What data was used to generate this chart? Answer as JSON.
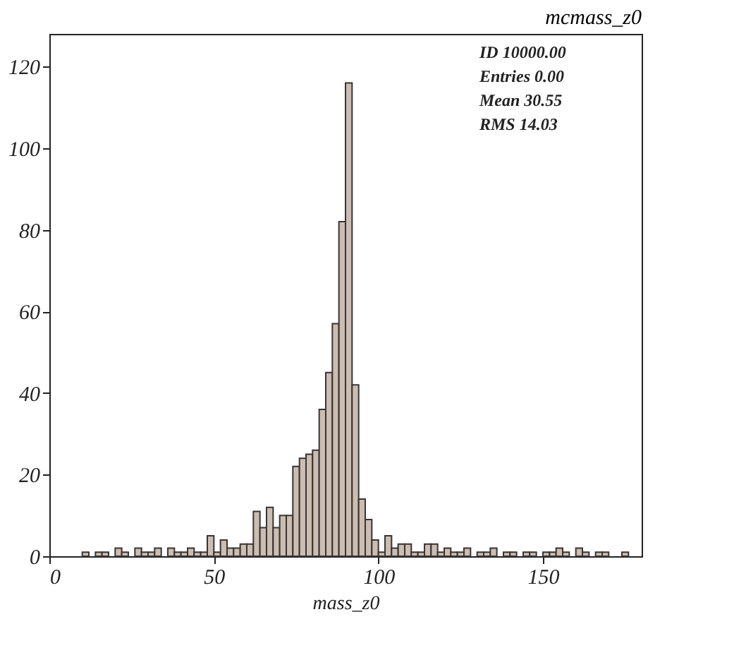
{
  "chart_data": {
    "type": "histogram",
    "title": "mcmass_z0",
    "xlabel": "mass_z0",
    "bins": [
      0,
      2,
      4,
      6,
      8,
      10,
      12,
      14,
      16,
      18,
      20,
      22,
      24,
      26,
      28,
      30,
      32,
      34,
      36,
      38,
      40,
      42,
      44,
      46,
      48,
      50,
      52,
      54,
      56,
      58,
      60,
      62,
      64,
      66,
      68,
      70,
      72,
      74,
      76,
      78,
      80,
      82,
      84,
      86,
      88,
      90,
      92,
      94,
      96,
      98,
      100,
      102,
      104,
      106,
      108,
      110,
      112,
      114,
      116,
      118,
      120,
      122,
      124,
      126,
      128,
      130,
      132,
      134,
      136,
      138,
      140,
      142,
      144,
      146,
      148,
      150,
      152,
      154,
      156,
      158,
      160,
      162,
      164,
      166,
      168,
      170,
      172,
      174,
      176,
      178,
      180
    ],
    "values": [
      0,
      0,
      0,
      0,
      0,
      1,
      0,
      1,
      1,
      0,
      2,
      1,
      0,
      2,
      1,
      1,
      2,
      0,
      2,
      1,
      1,
      2,
      1,
      1,
      5,
      1,
      4,
      2,
      2,
      3,
      3,
      11,
      7,
      12,
      7,
      10,
      10,
      22,
      24,
      25,
      26,
      36,
      45,
      57,
      82,
      116,
      42,
      14,
      9,
      4,
      1,
      5,
      2,
      3,
      3,
      1,
      1,
      3,
      3,
      1,
      2,
      1,
      1,
      2,
      0,
      1,
      1,
      2,
      0,
      1,
      1,
      0,
      1,
      1,
      0,
      1,
      1,
      2,
      1,
      0,
      2,
      1,
      0,
      1,
      1,
      0,
      0,
      1,
      0,
      0
    ],
    "color": "#cbbdb1",
    "xlim": [
      0,
      180
    ],
    "xticks": [
      0,
      50,
      100,
      150
    ],
    "ylim": [
      0,
      128
    ],
    "yticks": [
      0,
      20,
      40,
      60,
      80,
      100,
      120
    ],
    "grid": false,
    "annotations": [
      "ID 10000.00",
      "Entries 0.00",
      "Mean 30.55",
      "RMS 14.03"
    ]
  }
}
